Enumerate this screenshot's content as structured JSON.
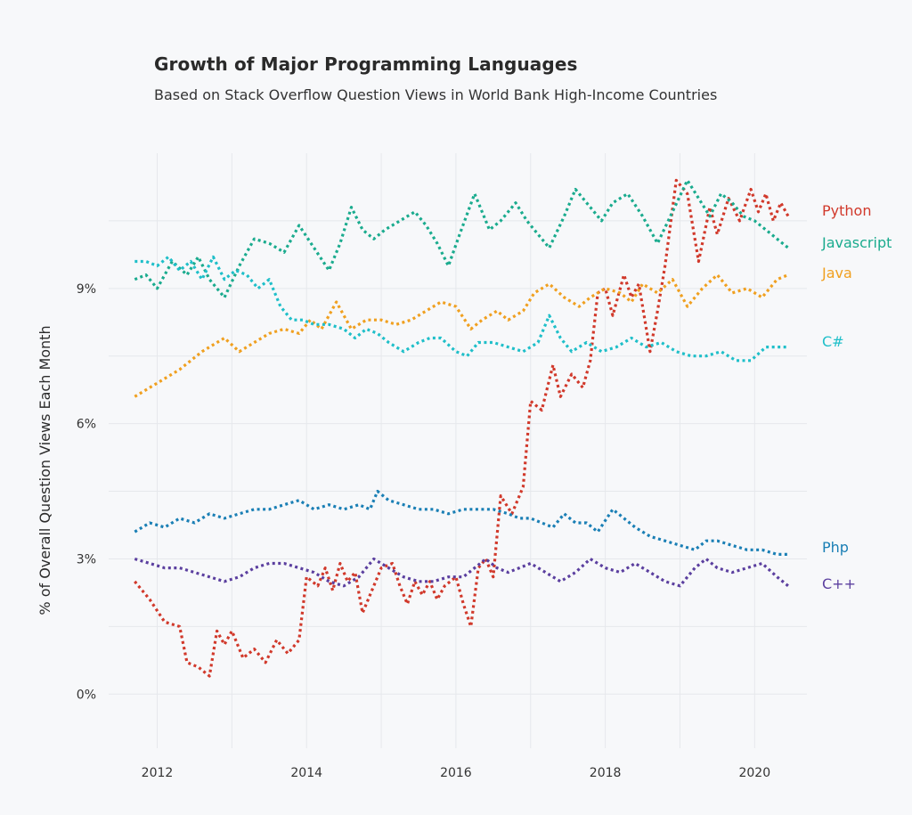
{
  "chart_data": {
    "type": "line",
    "title": "Growth of Major Programming Languages",
    "subtitle": "Based on Stack Overflow Question Views in World Bank High-Income Countries",
    "ylabel": "% of Overall Question Views Each Month",
    "xlabel": "",
    "xlim": [
      2011.35,
      2020.7
    ],
    "ylim": [
      -1.2,
      12.0
    ],
    "x_ticks": [
      2012,
      2014,
      2016,
      2018,
      2020
    ],
    "x_tick_labels": [
      "2012",
      "2014",
      "2016",
      "2018",
      "2020"
    ],
    "y_ticks": [
      0,
      3,
      6,
      9
    ],
    "y_tick_labels": [
      "0%",
      "3%",
      "6%",
      "9%"
    ],
    "grid": true,
    "legend": "direct labels at right end of lines",
    "series": [
      {
        "name": "Python",
        "color": "#d1392b",
        "x": [
          2011.7,
          2011.9,
          2012.1,
          2012.3,
          2012.4,
          2012.55,
          2012.7,
          2012.8,
          2012.9,
          2013.0,
          2013.15,
          2013.3,
          2013.45,
          2013.6,
          2013.75,
          2013.9,
          2014.0,
          2014.15,
          2014.25,
          2014.35,
          2014.45,
          2014.55,
          2014.65,
          2014.75,
          2014.85,
          2015.0,
          2015.15,
          2015.25,
          2015.35,
          2015.45,
          2015.55,
          2015.65,
          2015.75,
          2015.85,
          2016.0,
          2016.1,
          2016.2,
          2016.3,
          2016.4,
          2016.5,
          2016.6,
          2016.75,
          2016.9,
          2017.0,
          2017.15,
          2017.3,
          2017.4,
          2017.55,
          2017.7,
          2017.8,
          2017.9,
          2018.0,
          2018.1,
          2018.25,
          2018.35,
          2018.45,
          2018.6,
          2018.7,
          2018.8,
          2018.95,
          2019.1,
          2019.25,
          2019.4,
          2019.5,
          2019.65,
          2019.8,
          2019.95,
          2020.05,
          2020.15,
          2020.25,
          2020.35,
          2020.45
        ],
        "values": [
          2.5,
          2.1,
          1.6,
          1.5,
          0.7,
          0.6,
          0.4,
          1.4,
          1.1,
          1.4,
          0.8,
          1.0,
          0.7,
          1.2,
          0.9,
          1.2,
          2.6,
          2.4,
          2.8,
          2.3,
          2.9,
          2.5,
          2.7,
          1.8,
          2.2,
          2.8,
          2.9,
          2.4,
          2.0,
          2.5,
          2.2,
          2.5,
          2.1,
          2.4,
          2.6,
          2.0,
          1.5,
          2.8,
          3.0,
          2.6,
          4.4,
          4.0,
          4.6,
          6.5,
          6.3,
          7.3,
          6.6,
          7.1,
          6.8,
          7.4,
          8.9,
          9.0,
          8.4,
          9.3,
          8.8,
          9.1,
          7.6,
          8.5,
          9.5,
          11.4,
          11.1,
          9.6,
          10.8,
          10.2,
          11.0,
          10.5,
          11.2,
          10.7,
          11.1,
          10.5,
          10.9,
          10.6
        ]
      },
      {
        "name": "Javascript",
        "color": "#1aab8e",
        "x": [
          2011.7,
          2011.85,
          2012.0,
          2012.2,
          2012.4,
          2012.55,
          2012.7,
          2012.9,
          2013.1,
          2013.3,
          2013.5,
          2013.7,
          2013.9,
          2014.1,
          2014.3,
          2014.45,
          2014.6,
          2014.75,
          2014.9,
          2015.05,
          2015.25,
          2015.45,
          2015.6,
          2015.75,
          2015.9,
          2016.05,
          2016.25,
          2016.45,
          2016.6,
          2016.8,
          2016.95,
          2017.1,
          2017.25,
          2017.45,
          2017.6,
          2017.8,
          2017.95,
          2018.1,
          2018.3,
          2018.5,
          2018.7,
          2018.9,
          2019.1,
          2019.25,
          2019.4,
          2019.55,
          2019.7,
          2019.85,
          2020.0,
          2020.15,
          2020.3,
          2020.45
        ],
        "values": [
          9.2,
          9.3,
          9.0,
          9.6,
          9.3,
          9.7,
          9.2,
          8.8,
          9.5,
          10.1,
          10.0,
          9.8,
          10.4,
          9.9,
          9.4,
          10.0,
          10.8,
          10.3,
          10.1,
          10.3,
          10.5,
          10.7,
          10.4,
          10.0,
          9.5,
          10.2,
          11.1,
          10.3,
          10.5,
          10.9,
          10.5,
          10.2,
          9.9,
          10.6,
          11.2,
          10.8,
          10.5,
          10.9,
          11.1,
          10.6,
          10.0,
          10.7,
          11.4,
          11.0,
          10.6,
          11.1,
          10.9,
          10.6,
          10.5,
          10.3,
          10.1,
          9.9
        ]
      },
      {
        "name": "Java",
        "color": "#f0a020",
        "x": [
          2011.7,
          2012.0,
          2012.3,
          2012.6,
          2012.9,
          2013.1,
          2013.3,
          2013.5,
          2013.7,
          2013.9,
          2014.05,
          2014.2,
          2014.4,
          2014.6,
          2014.8,
          2015.0,
          2015.2,
          2015.4,
          2015.6,
          2015.8,
          2016.0,
          2016.2,
          2016.35,
          2016.55,
          2016.7,
          2016.9,
          2017.05,
          2017.25,
          2017.45,
          2017.65,
          2017.8,
          2018.0,
          2018.2,
          2018.35,
          2018.5,
          2018.7,
          2018.9,
          2019.1,
          2019.3,
          2019.5,
          2019.7,
          2019.9,
          2020.1,
          2020.3,
          2020.45
        ],
        "values": [
          6.6,
          6.9,
          7.2,
          7.6,
          7.9,
          7.6,
          7.8,
          8.0,
          8.1,
          8.0,
          8.3,
          8.1,
          8.7,
          8.1,
          8.3,
          8.3,
          8.2,
          8.3,
          8.5,
          8.7,
          8.6,
          8.1,
          8.3,
          8.5,
          8.3,
          8.5,
          8.9,
          9.1,
          8.8,
          8.6,
          8.8,
          9.0,
          8.9,
          8.7,
          9.1,
          8.9,
          9.2,
          8.6,
          9.0,
          9.3,
          8.9,
          9.0,
          8.8,
          9.2,
          9.3
        ]
      },
      {
        "name": "C#",
        "color": "#1fbfc9",
        "x": [
          2011.7,
          2011.85,
          2012.0,
          2012.15,
          2012.3,
          2012.45,
          2012.6,
          2012.75,
          2012.9,
          2013.05,
          2013.2,
          2013.35,
          2013.5,
          2013.65,
          2013.8,
          2013.95,
          2014.1,
          2014.3,
          2014.5,
          2014.65,
          2014.8,
          2014.95,
          2015.1,
          2015.3,
          2015.5,
          2015.65,
          2015.8,
          2016.0,
          2016.15,
          2016.3,
          2016.5,
          2016.7,
          2016.9,
          2017.1,
          2017.25,
          2017.4,
          2017.55,
          2017.75,
          2017.95,
          2018.15,
          2018.35,
          2018.55,
          2018.75,
          2018.95,
          2019.15,
          2019.35,
          2019.55,
          2019.75,
          2019.95,
          2020.15,
          2020.3,
          2020.45
        ],
        "values": [
          9.6,
          9.6,
          9.5,
          9.7,
          9.4,
          9.6,
          9.2,
          9.7,
          9.2,
          9.4,
          9.3,
          9.0,
          9.2,
          8.6,
          8.3,
          8.3,
          8.2,
          8.2,
          8.1,
          7.9,
          8.1,
          8.0,
          7.8,
          7.6,
          7.8,
          7.9,
          7.9,
          7.6,
          7.5,
          7.8,
          7.8,
          7.7,
          7.6,
          7.8,
          8.4,
          7.9,
          7.6,
          7.8,
          7.6,
          7.7,
          7.9,
          7.7,
          7.8,
          7.6,
          7.5,
          7.5,
          7.6,
          7.4,
          7.4,
          7.7,
          7.7,
          7.7
        ]
      },
      {
        "name": "Php",
        "color": "#1a7fb5",
        "x": [
          2011.7,
          2011.9,
          2012.1,
          2012.3,
          2012.5,
          2012.7,
          2012.9,
          2013.1,
          2013.3,
          2013.5,
          2013.7,
          2013.9,
          2014.1,
          2014.3,
          2014.5,
          2014.7,
          2014.85,
          2014.95,
          2015.1,
          2015.3,
          2015.5,
          2015.7,
          2015.9,
          2016.1,
          2016.3,
          2016.5,
          2016.7,
          2016.85,
          2017.0,
          2017.15,
          2017.3,
          2017.45,
          2017.6,
          2017.75,
          2017.9,
          2018.1,
          2018.25,
          2018.4,
          2018.6,
          2018.8,
          2019.0,
          2019.2,
          2019.35,
          2019.5,
          2019.7,
          2019.9,
          2020.1,
          2020.3,
          2020.45
        ],
        "values": [
          3.6,
          3.8,
          3.7,
          3.9,
          3.8,
          4.0,
          3.9,
          4.0,
          4.1,
          4.1,
          4.2,
          4.3,
          4.1,
          4.2,
          4.1,
          4.2,
          4.1,
          4.5,
          4.3,
          4.2,
          4.1,
          4.1,
          4.0,
          4.1,
          4.1,
          4.1,
          4.0,
          3.9,
          3.9,
          3.8,
          3.7,
          4.0,
          3.8,
          3.8,
          3.6,
          4.1,
          3.9,
          3.7,
          3.5,
          3.4,
          3.3,
          3.2,
          3.4,
          3.4,
          3.3,
          3.2,
          3.2,
          3.1,
          3.1
        ]
      },
      {
        "name": "C++",
        "color": "#5b3f9f",
        "x": [
          2011.7,
          2011.9,
          2012.1,
          2012.3,
          2012.5,
          2012.7,
          2012.9,
          2013.1,
          2013.3,
          2013.5,
          2013.7,
          2013.9,
          2014.1,
          2014.3,
          2014.5,
          2014.7,
          2014.9,
          2015.1,
          2015.3,
          2015.5,
          2015.7,
          2015.9,
          2016.1,
          2016.25,
          2016.4,
          2016.55,
          2016.7,
          2016.85,
          2017.0,
          2017.2,
          2017.4,
          2017.6,
          2017.8,
          2018.0,
          2018.2,
          2018.4,
          2018.6,
          2018.8,
          2019.0,
          2019.2,
          2019.35,
          2019.5,
          2019.7,
          2019.9,
          2020.1,
          2020.3,
          2020.45
        ],
        "values": [
          3.0,
          2.9,
          2.8,
          2.8,
          2.7,
          2.6,
          2.5,
          2.6,
          2.8,
          2.9,
          2.9,
          2.8,
          2.7,
          2.5,
          2.4,
          2.6,
          3.0,
          2.8,
          2.6,
          2.5,
          2.5,
          2.6,
          2.6,
          2.8,
          3.0,
          2.8,
          2.7,
          2.8,
          2.9,
          2.7,
          2.5,
          2.7,
          3.0,
          2.8,
          2.7,
          2.9,
          2.7,
          2.5,
          2.4,
          2.8,
          3.0,
          2.8,
          2.7,
          2.8,
          2.9,
          2.6,
          2.4
        ]
      }
    ]
  }
}
